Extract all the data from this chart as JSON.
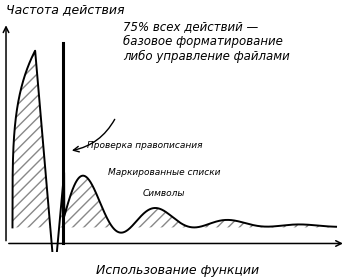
{
  "ylabel": "Частота действия",
  "xlabel": "Использование функции",
  "annotation_main": "75% всех действий —\nбазовое форматирование\nлибо управление файлами",
  "label1": "Проверка правописания",
  "label2": "Маркированные списки",
  "label3": "Символы",
  "bg_color": "#ffffff",
  "line_color": "#000000",
  "hatch_pattern": "///",
  "font_size_labels": 6.5,
  "font_size_axis": 9,
  "font_size_annotation": 8.5,
  "xlim": [
    -0.03,
    1.05
  ],
  "ylim": [
    -0.12,
    1.08
  ]
}
